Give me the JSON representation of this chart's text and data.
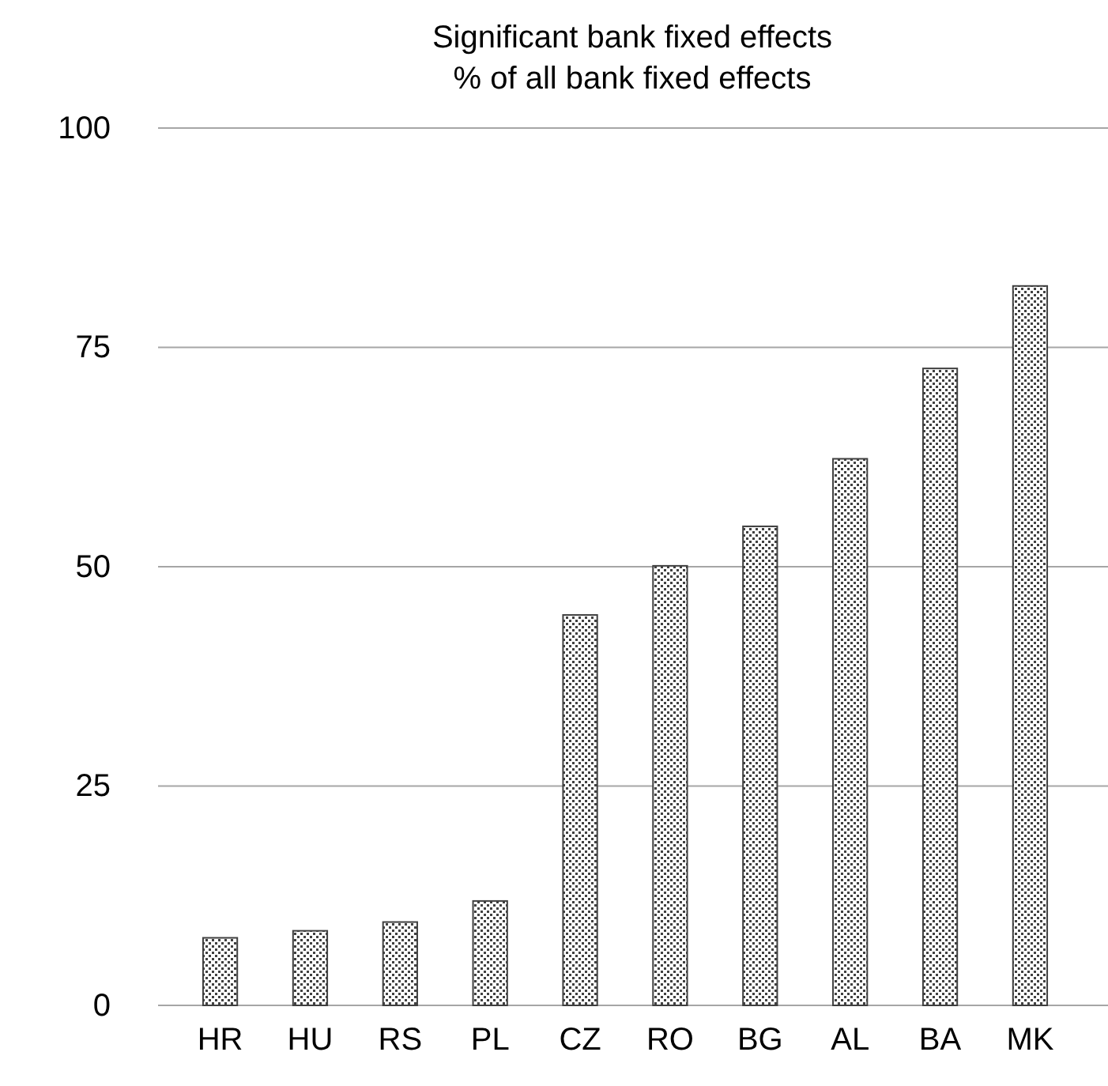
{
  "chart_data": {
    "type": "bar",
    "title": "Significant bank fixed effects\n% of all bank fixed effects",
    "categories": [
      "HR",
      "HU",
      "RS",
      "PL",
      "CZ",
      "RO",
      "BG",
      "AL",
      "BA",
      "MK"
    ],
    "values": [
      7.7,
      8.5,
      9.5,
      11.9,
      44.5,
      50.1,
      54.6,
      62.3,
      72.6,
      82
    ],
    "color": "#404040",
    "ylim": [
      0,
      100
    ],
    "yticks": [
      0,
      25,
      50,
      75,
      100
    ],
    "grid": "y"
  }
}
